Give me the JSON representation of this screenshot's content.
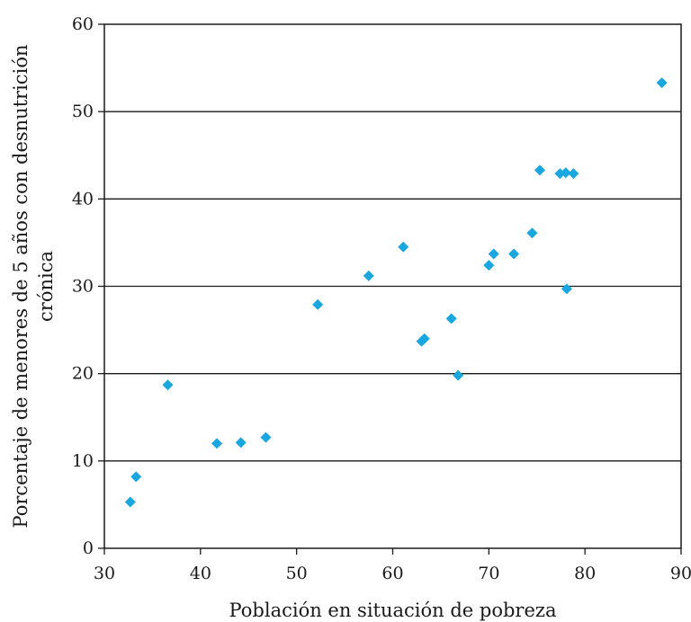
{
  "chart_data": {
    "type": "scatter",
    "xlabel": "Población en situación de pobreza",
    "ylabel_lines": [
      "Porcentaje de menores de 5 años con desnutrición",
      "crónica"
    ],
    "xlim": [
      30,
      90
    ],
    "ylim": [
      0,
      60
    ],
    "xticks": [
      30,
      40,
      50,
      60,
      70,
      80,
      90
    ],
    "yticks": [
      0,
      10,
      20,
      30,
      40,
      50,
      60
    ],
    "grid": "horizontal",
    "marker": "diamond",
    "color": "#1aa7e0",
    "points": [
      {
        "x": 32.7,
        "y": 5.3
      },
      {
        "x": 33.3,
        "y": 8.2
      },
      {
        "x": 36.6,
        "y": 18.7
      },
      {
        "x": 41.7,
        "y": 12.0
      },
      {
        "x": 44.2,
        "y": 12.1
      },
      {
        "x": 46.8,
        "y": 12.7
      },
      {
        "x": 52.2,
        "y": 27.9
      },
      {
        "x": 57.5,
        "y": 31.2
      },
      {
        "x": 61.1,
        "y": 34.5
      },
      {
        "x": 63.0,
        "y": 23.7
      },
      {
        "x": 63.3,
        "y": 24.0
      },
      {
        "x": 66.1,
        "y": 26.3
      },
      {
        "x": 66.8,
        "y": 19.8
      },
      {
        "x": 70.0,
        "y": 32.4
      },
      {
        "x": 70.5,
        "y": 33.7
      },
      {
        "x": 72.6,
        "y": 33.7
      },
      {
        "x": 74.5,
        "y": 36.1
      },
      {
        "x": 75.3,
        "y": 43.3
      },
      {
        "x": 77.4,
        "y": 42.9
      },
      {
        "x": 78.0,
        "y": 43.0
      },
      {
        "x": 78.8,
        "y": 42.9
      },
      {
        "x": 78.1,
        "y": 29.7
      },
      {
        "x": 88.0,
        "y": 53.3
      }
    ]
  }
}
